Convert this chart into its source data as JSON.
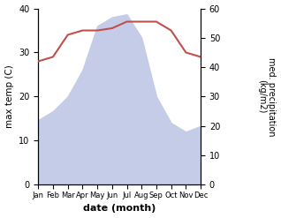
{
  "months": [
    "Jan",
    "Feb",
    "Mar",
    "Apr",
    "May",
    "Jun",
    "Jul",
    "Aug",
    "Sep",
    "Oct",
    "Nov",
    "Dec"
  ],
  "month_indices": [
    1,
    2,
    3,
    4,
    5,
    6,
    7,
    8,
    9,
    10,
    11,
    12
  ],
  "temperature": [
    28,
    29,
    34,
    35,
    35,
    35.5,
    37,
    37,
    37,
    35,
    30,
    29
  ],
  "precipitation": [
    22,
    25,
    30,
    39,
    54,
    57,
    58,
    50,
    30,
    21,
    18,
    20
  ],
  "temp_color": "#c0504d",
  "precip_fill_color": "#c5cce8",
  "ylabel_left": "max temp (C)",
  "ylabel_right": "med. precipitation\n(kg/m2)",
  "xlabel": "date (month)",
  "ylim_left": [
    0,
    40
  ],
  "ylim_right": [
    0,
    60
  ],
  "yticks_left": [
    0,
    10,
    20,
    30,
    40
  ],
  "yticks_right": [
    0,
    10,
    20,
    30,
    40,
    50,
    60
  ],
  "background_color": "#ffffff",
  "fig_width": 3.18,
  "fig_height": 2.47,
  "dpi": 100
}
